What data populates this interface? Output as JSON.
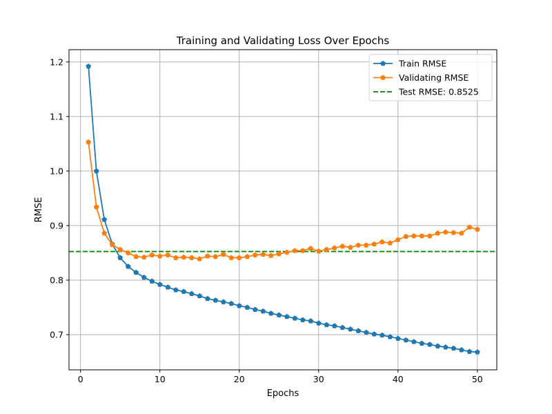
{
  "chart_data": {
    "type": "line",
    "title": "Training and Validating Loss Over Epochs",
    "xlabel": "Epochs",
    "ylabel": "RMSE",
    "xlim": [
      -1.45,
      52.45
    ],
    "ylim": [
      0.6355,
      1.2225
    ],
    "xticks": [
      0,
      10,
      20,
      30,
      40,
      50
    ],
    "yticks": [
      0.7,
      0.8,
      0.9,
      1.0,
      1.1,
      1.2
    ],
    "ytick_labels": [
      "0.7",
      "0.8",
      "0.9",
      "1.0",
      "1.1",
      "1.2"
    ],
    "grid": true,
    "legend_position": "top-right",
    "x": [
      1,
      2,
      3,
      4,
      5,
      6,
      7,
      8,
      9,
      10,
      11,
      12,
      13,
      14,
      15,
      16,
      17,
      18,
      19,
      20,
      21,
      22,
      23,
      24,
      25,
      26,
      27,
      28,
      29,
      30,
      31,
      32,
      33,
      34,
      35,
      36,
      37,
      38,
      39,
      40,
      41,
      42,
      43,
      44,
      45,
      46,
      47,
      48,
      49,
      50
    ],
    "series": [
      {
        "name": "Train RMSE",
        "color": "#1f77b4",
        "marker": "pentagon",
        "values": [
          1.192,
          1.0,
          0.911,
          0.866,
          0.841,
          0.825,
          0.814,
          0.805,
          0.798,
          0.792,
          0.787,
          0.782,
          0.779,
          0.775,
          0.771,
          0.766,
          0.763,
          0.76,
          0.757,
          0.753,
          0.75,
          0.746,
          0.743,
          0.739,
          0.736,
          0.733,
          0.73,
          0.727,
          0.725,
          0.721,
          0.718,
          0.716,
          0.713,
          0.71,
          0.707,
          0.704,
          0.701,
          0.699,
          0.696,
          0.693,
          0.69,
          0.687,
          0.684,
          0.682,
          0.679,
          0.677,
          0.675,
          0.672,
          0.669,
          0.668
        ]
      },
      {
        "name": "Validating RMSE",
        "color": "#ff7f0e",
        "marker": "pentagon",
        "values": [
          1.053,
          0.934,
          0.886,
          0.865,
          0.856,
          0.85,
          0.843,
          0.842,
          0.846,
          0.844,
          0.846,
          0.841,
          0.842,
          0.841,
          0.839,
          0.844,
          0.843,
          0.847,
          0.841,
          0.841,
          0.843,
          0.846,
          0.847,
          0.845,
          0.848,
          0.851,
          0.854,
          0.854,
          0.858,
          0.853,
          0.856,
          0.859,
          0.862,
          0.86,
          0.864,
          0.864,
          0.866,
          0.87,
          0.868,
          0.874,
          0.88,
          0.881,
          0.881,
          0.881,
          0.886,
          0.888,
          0.887,
          0.886,
          0.897,
          0.893
        ]
      }
    ],
    "hlines": [
      {
        "name": "Test RMSE: 0.8525",
        "value": 0.8525,
        "color": "#008000",
        "style": "dashed"
      }
    ]
  }
}
